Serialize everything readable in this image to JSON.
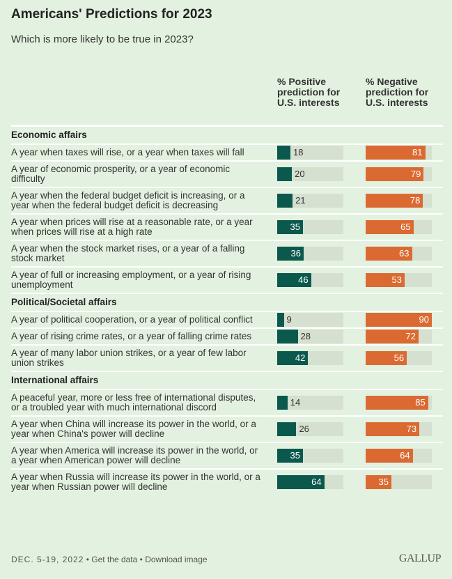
{
  "title": "Americans' Predictions for 2023",
  "subtitle": "Which is more likely to be true in 2023?",
  "colors": {
    "positive": "#0b594d",
    "negative": "#db6a32",
    "track": "#d5e0d0",
    "background": "#e3f1e0"
  },
  "chart_data": {
    "type": "bar",
    "orientation": "horizontal",
    "xlim": [
      0,
      90
    ],
    "columns": [
      "% Positive prediction for U.S. interests",
      "% Negative prediction for U.S. interests"
    ],
    "sections": [
      {
        "name": "Economic affairs",
        "items": [
          {
            "label": "A year when taxes will rise, or a year when taxes will fall",
            "positive": 18,
            "negative": 81
          },
          {
            "label": "A year of economic prosperity, or a year of economic difficulty",
            "positive": 20,
            "negative": 79
          },
          {
            "label": "A year when the federal budget deficit is increasing, or a year when the federal budget deficit is decreasing",
            "positive": 21,
            "negative": 78
          },
          {
            "label": "A year when prices will rise at a reasonable rate, or a year when prices will rise at a high rate",
            "positive": 35,
            "negative": 65
          },
          {
            "label": "A year when the stock market rises, or a year of a falling stock market",
            "positive": 36,
            "negative": 63
          },
          {
            "label": "A year of full or increasing employment, or a year of rising unemployment",
            "positive": 46,
            "negative": 53
          }
        ]
      },
      {
        "name": "Political/Societal affairs",
        "items": [
          {
            "label": "A year of political cooperation, or a year of political conflict",
            "positive": 9,
            "negative": 90
          },
          {
            "label": "A year of rising crime rates, or a year of falling crime rates",
            "positive": 28,
            "negative": 72
          },
          {
            "label": "A year of many labor union strikes, or a year of few labor union strikes",
            "positive": 42,
            "negative": 56
          }
        ]
      },
      {
        "name": "International affairs",
        "items": [
          {
            "label": "A peaceful year, more or less free of international disputes, or a troubled year with much international discord",
            "positive": 14,
            "negative": 85
          },
          {
            "label": "A year when China will increase its power in the world, or a year when China's power will decline",
            "positive": 26,
            "negative": 73
          },
          {
            "label": "A year when America will increase its power in the world, or a year when American power will decline",
            "positive": 35,
            "negative": 64
          },
          {
            "label": "A year when Russia will increase its power in the world, or a year when Russian power will decline",
            "positive": 64,
            "negative": 35
          }
        ]
      }
    ]
  },
  "footer": {
    "date": "DEC. 5-19, 2022",
    "sep": " • ",
    "get_data": "Get the data",
    "download": "Download image"
  },
  "logo": "GALLUP"
}
